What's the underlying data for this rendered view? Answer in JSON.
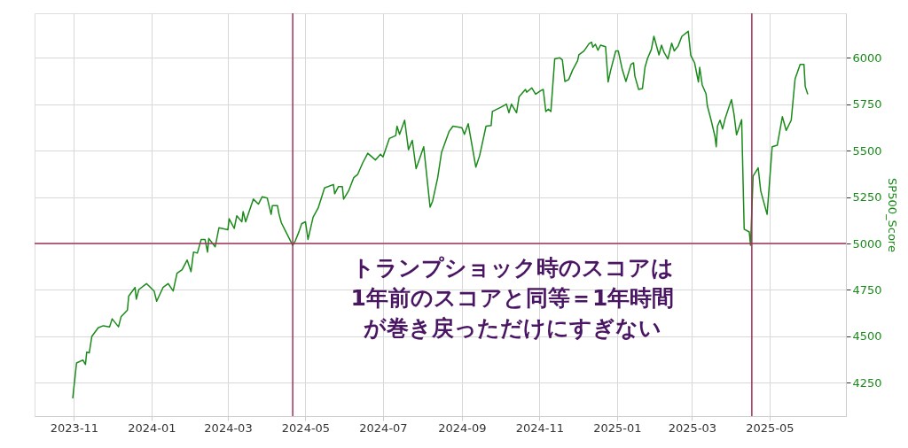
{
  "chart_data": {
    "type": "line",
    "x": [
      "2023-10-31",
      "2023-11-03",
      "2023-11-08",
      "2023-11-10",
      "2023-11-11",
      "2023-11-13",
      "2023-11-15",
      "2023-11-20",
      "2023-11-24",
      "2023-11-29",
      "2023-12-01",
      "2023-12-06",
      "2023-12-08",
      "2023-12-13",
      "2023-12-14",
      "2023-12-19",
      "2023-12-20",
      "2023-12-22",
      "2023-12-28",
      "2024-01-03",
      "2024-01-05",
      "2024-01-10",
      "2024-01-14",
      "2024-01-18",
      "2024-01-21",
      "2024-01-25",
      "2024-01-29",
      "2024-02-01",
      "2024-02-03",
      "2024-02-06",
      "2024-02-09",
      "2024-02-12",
      "2024-02-14",
      "2024-02-15",
      "2024-02-20",
      "2024-02-23",
      "2024-03-01",
      "2024-03-02",
      "2024-03-06",
      "2024-03-08",
      "2024-03-12",
      "2024-03-13",
      "2024-03-15",
      "2024-03-21",
      "2024-03-25",
      "2024-03-28",
      "2024-04-01",
      "2024-04-04",
      "2024-04-05",
      "2024-04-09",
      "2024-04-10",
      "2024-04-12",
      "2024-04-21",
      "2024-04-23",
      "2024-04-26",
      "2024-04-28",
      "2024-05-01",
      "2024-05-03",
      "2024-05-07",
      "2024-05-11",
      "2024-05-16",
      "2024-05-23",
      "2024-05-24",
      "2024-05-27",
      "2024-05-30",
      "2024-05-31",
      "2024-06-04",
      "2024-06-08",
      "2024-06-11",
      "2024-06-15",
      "2024-06-19",
      "2024-06-25",
      "2024-06-29",
      "2024-07-01",
      "2024-07-06",
      "2024-07-11",
      "2024-07-12",
      "2024-07-14",
      "2024-07-18",
      "2024-07-21",
      "2024-07-24",
      "2024-07-27",
      "2024-07-30",
      "2024-08-02",
      "2024-08-07",
      "2024-08-09",
      "2024-08-13",
      "2024-08-16",
      "2024-08-22",
      "2024-08-25",
      "2024-09-01",
      "2024-09-03",
      "2024-09-06",
      "2024-09-12",
      "2024-09-15",
      "2024-09-20",
      "2024-09-24",
      "2024-09-25",
      "2024-10-02",
      "2024-10-06",
      "2024-10-08",
      "2024-10-10",
      "2024-10-14",
      "2024-10-16",
      "2024-10-21",
      "2024-10-22",
      "2024-10-26",
      "2024-10-29",
      "2024-11-02",
      "2024-11-04",
      "2024-11-06",
      "2024-11-08",
      "2024-11-10",
      "2024-11-13",
      "2024-11-17",
      "2024-11-19",
      "2024-11-21",
      "2024-11-24",
      "2024-11-27",
      "2024-12-01",
      "2024-12-02",
      "2024-12-06",
      "2024-12-10",
      "2024-12-12",
      "2024-12-13",
      "2024-12-15",
      "2024-12-17",
      "2024-12-19",
      "2024-12-23",
      "2024-12-25",
      "2024-12-27",
      "2024-12-31",
      "2025-01-02",
      "2025-01-05",
      "2025-01-08",
      "2025-01-12",
      "2025-01-14",
      "2025-01-15",
      "2025-01-18",
      "2025-01-21",
      "2025-01-23",
      "2025-01-25",
      "2025-01-28",
      "2025-01-30",
      "2025-02-03",
      "2025-02-05",
      "2025-02-07",
      "2025-02-10",
      "2025-02-13",
      "2025-02-15",
      "2025-02-18",
      "2025-02-21",
      "2025-02-26",
      "2025-02-28",
      "2025-03-03",
      "2025-03-06",
      "2025-03-07",
      "2025-03-09",
      "2025-03-12",
      "2025-03-13",
      "2025-03-16",
      "2025-03-19",
      "2025-03-20",
      "2025-03-21",
      "2025-03-23",
      "2025-03-25",
      "2025-03-27",
      "2025-03-30",
      "2025-04-01",
      "2025-04-03",
      "2025-04-05",
      "2025-04-09",
      "2025-04-11",
      "2025-04-15",
      "2025-04-16",
      "2025-04-18",
      "2025-04-22",
      "2025-04-24",
      "2025-04-29",
      "2025-05-03",
      "2025-05-07",
      "2025-05-11",
      "2025-05-14",
      "2025-05-18",
      "2025-05-21",
      "2025-05-25",
      "2025-05-28",
      "2025-05-29",
      "2025-05-31"
    ],
    "series": [
      {
        "color": "#1a8a1a",
        "values": [
          4166,
          4356,
          4372,
          4348,
          4415,
          4411,
          4499,
          4546,
          4557,
          4551,
          4594,
          4551,
          4605,
          4641,
          4716,
          4763,
          4700,
          4752,
          4784,
          4744,
          4689,
          4763,
          4784,
          4744,
          4840,
          4859,
          4911,
          4848,
          4954,
          4948,
          5022,
          5022,
          4954,
          5027,
          4982,
          5085,
          5074,
          5133,
          5081,
          5149,
          5117,
          5172,
          5117,
          5239,
          5212,
          5252,
          5244,
          5157,
          5204,
          5204,
          5164,
          5112,
          4990,
          5014,
          5065,
          5106,
          5117,
          5022,
          5141,
          5191,
          5299,
          5318,
          5268,
          5307,
          5307,
          5239,
          5284,
          5355,
          5371,
          5434,
          5486,
          5450,
          5481,
          5466,
          5566,
          5581,
          5632,
          5588,
          5664,
          5505,
          5556,
          5403,
          5462,
          5521,
          5196,
          5228,
          5355,
          5490,
          5604,
          5632,
          5624,
          5588,
          5645,
          5411,
          5474,
          5632,
          5635,
          5711,
          5735,
          5751,
          5704,
          5751,
          5704,
          5791,
          5830,
          5815,
          5838,
          5804,
          5823,
          5830,
          5711,
          5724,
          5711,
          5994,
          6000,
          5989,
          5873,
          5883,
          5933,
          5984,
          6016,
          6037,
          6076,
          6084,
          6057,
          6073,
          6041,
          6068,
          6060,
          5870,
          5933,
          6037,
          6037,
          5941,
          5873,
          5965,
          5973,
          5902,
          5830,
          5835,
          5949,
          5997,
          6045,
          6116,
          6016,
          6068,
          6029,
          5994,
          6079,
          6037,
          6063,
          6116,
          6143,
          6013,
          5973,
          5870,
          5949,
          5854,
          5806,
          5743,
          5664,
          5577,
          5521,
          5632,
          5664,
          5617,
          5672,
          5735,
          5775,
          5696,
          5585,
          5667,
          5077,
          5062,
          4990,
          5363,
          5407,
          5283,
          5157,
          5521,
          5529,
          5683,
          5609,
          5664,
          5886,
          5965,
          5965,
          5846,
          5804
        ]
      }
    ],
    "ylabel": "SP500_Score",
    "xlim": [
      "2023-10-01",
      "2025-06-30"
    ],
    "xticks": [
      "2023-11",
      "2024-01",
      "2024-03",
      "2024-05",
      "2024-07",
      "2024-09",
      "2024-11",
      "2025-01",
      "2025-03",
      "2025-05"
    ],
    "ylim": [
      4070,
      6240
    ],
    "yticks": [
      4250,
      4500,
      4750,
      5000,
      5250,
      5500,
      5750,
      6000
    ],
    "grid": true,
    "line_style": "solid",
    "ref_lines": [
      {
        "axis": "x",
        "value": "2024-04-21",
        "color": "#a0305a"
      },
      {
        "axis": "x",
        "value": "2025-04-17",
        "color": "#a0305a"
      },
      {
        "axis": "y",
        "value": 5000,
        "color": "#a0305a"
      }
    ],
    "annotations": [
      "トランプショック時のスコアは",
      "1年前のスコアと同等＝1年時間",
      "が巻き戻っただけにすぎない"
    ]
  }
}
